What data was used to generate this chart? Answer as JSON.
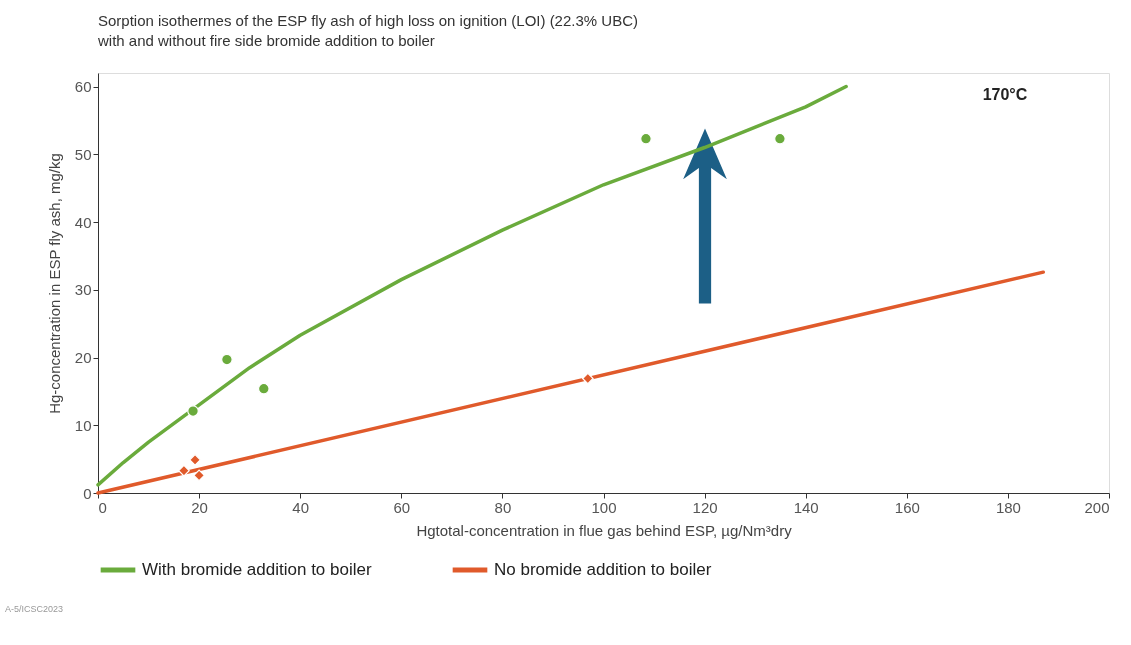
{
  "chart_data": {
    "type": "scatter",
    "title": "Sorption isothermes of the ESP fly ash of high loss on ignition (LOI) (22.3% UBC)\nwith and without fire side bromide addition to boiler",
    "xlabel": "Hgtotal-concentration in flue gas behind ESP, µg/Nm³dry",
    "ylabel": "Hg-concentration in ESP fly ash, mg/kg",
    "xlim": [
      0,
      200
    ],
    "xticks": [
      0,
      20,
      40,
      60,
      80,
      100,
      120,
      140,
      160,
      180,
      200
    ],
    "ylim": [
      0,
      62
    ],
    "yticks": [
      0,
      10,
      20,
      30,
      40,
      50,
      60
    ],
    "series": [
      {
        "type": "line",
        "name": "With bromide addition to boiler",
        "color": "#6aab3c",
        "x": [
          0,
          5,
          10,
          20,
          30,
          40,
          60,
          80,
          100,
          120,
          140,
          148
        ],
        "values": [
          1.2,
          4.5,
          7.5,
          13,
          18.5,
          23.3,
          31.5,
          38.8,
          45.5,
          51,
          57,
          60
        ]
      },
      {
        "type": "line",
        "name": "No bromide addition to boiler",
        "color": "#e05a2b",
        "x": [
          0,
          187
        ],
        "values": [
          0,
          32.6
        ]
      },
      {
        "color": "#6aab3c",
        "marker": "circle",
        "x": [
          18.8,
          25.5,
          32.8,
          108.4,
          134.9
        ],
        "values": [
          12.1,
          19.7,
          15.4,
          52.3,
          52.3
        ]
      },
      {
        "color": "#e05a2b",
        "marker": "diamond",
        "x": [
          17,
          19.2,
          20,
          96.9
        ],
        "values": [
          3.3,
          4.9,
          2.6,
          16.9
        ]
      }
    ],
    "annotations": [
      "170°C",
      "A-5/ICSC2023"
    ],
    "legend": "bottom",
    "grid": false,
    "line_style": "solid"
  }
}
